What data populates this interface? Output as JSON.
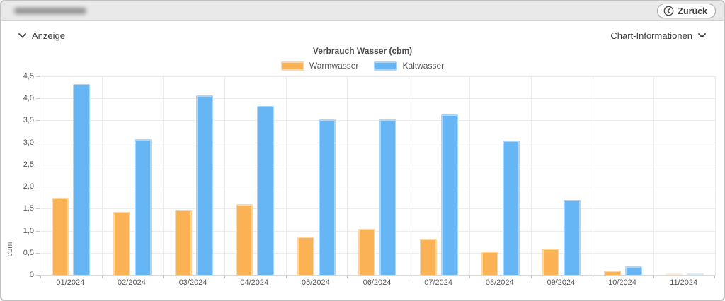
{
  "header": {
    "back_button_label": "Zurück"
  },
  "controls": {
    "anzeige_label": "Anzeige",
    "chart_info_label": "Chart-Informationen"
  },
  "chart_data": {
    "type": "bar",
    "title": "Verbrauch Wasser (cbm)",
    "ylabel": "cbm",
    "ylim": [
      0,
      4.5
    ],
    "grid": true,
    "legend_position": "top",
    "categories": [
      "01/2024",
      "02/2024",
      "03/2024",
      "04/2024",
      "05/2024",
      "06/2024",
      "07/2024",
      "08/2024",
      "09/2024",
      "10/2024",
      "11/2024"
    ],
    "yticks": [
      {
        "label": "0",
        "value": 0
      },
      {
        "label": "0,5",
        "value": 0.5
      },
      {
        "label": "1,0",
        "value": 1.0
      },
      {
        "label": "1,5",
        "value": 1.5
      },
      {
        "label": "2,0",
        "value": 2.0
      },
      {
        "label": "2,5",
        "value": 2.5
      },
      {
        "label": "3,0",
        "value": 3.0
      },
      {
        "label": "3,5",
        "value": 3.5
      },
      {
        "label": "4,0",
        "value": 4.0
      },
      {
        "label": "4,5",
        "value": 4.5
      }
    ],
    "series": [
      {
        "name": "Warmwasser",
        "color": "#FBB254",
        "border_color": "#FDD7A6",
        "values": [
          1.75,
          1.42,
          1.47,
          1.6,
          0.87,
          1.04,
          0.81,
          0.53,
          0.6,
          0.1,
          0.01
        ]
      },
      {
        "name": "Kaltwasser",
        "color": "#66B5F5",
        "border_color": "#A9D6FA",
        "values": [
          4.33,
          3.08,
          4.06,
          3.83,
          3.52,
          3.52,
          3.63,
          3.04,
          1.69,
          0.2,
          0.01
        ]
      }
    ]
  },
  "colors": {
    "topbar_bg": "#e9e9e9",
    "frame_border": "#bfbfbf",
    "gridline": "#ececec",
    "axis_line": "#d9d9d9",
    "warm": "#FBB254",
    "cold": "#66B5F5",
    "text_dark": "#3c3c3c",
    "text_axis": "#585858"
  }
}
